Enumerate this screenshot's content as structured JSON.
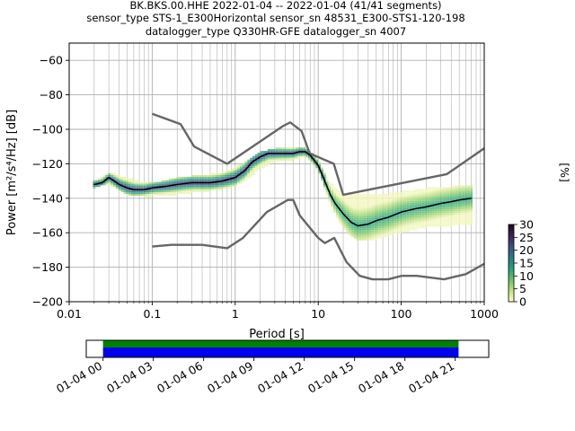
{
  "title_lines": [
    "BK.BKS.00.HHE   2022-01-04 -- 2022-01-04  (41/41 segments)",
    "sensor_type STS-1_E300Horizontal sensor_sn 48531_E300-STS1-120-198",
    "datalogger_type Q330HR-GFE datalogger_sn 4007"
  ],
  "chart_data": {
    "type": "heatmap",
    "xlabel": "Period [s]",
    "ylabel": "Power [m²/s⁴/Hz] [dB]",
    "x_scale": "log",
    "xlim": [
      0.01,
      1000
    ],
    "ylim": [
      -200,
      -50
    ],
    "grid": true,
    "x_ticks": [
      0.01,
      0.1,
      1,
      10,
      100,
      1000
    ],
    "x_tick_labels": [
      "0.01",
      "0.1",
      "1",
      "10",
      "100",
      "1000"
    ],
    "y_ticks": [
      -200,
      -180,
      -160,
      -140,
      -120,
      -100,
      -80,
      -60
    ],
    "y_tick_labels": [
      "−200",
      "−180",
      "−160",
      "−140",
      "−120",
      "−100",
      "−80",
      "−60"
    ],
    "colorbar": {
      "label": "[%]",
      "range": [
        0,
        30
      ],
      "ticks": [
        0,
        5,
        10,
        15,
        20,
        25,
        30
      ],
      "tick_labels": [
        "0",
        "5",
        "10",
        "15",
        "20",
        "25",
        "30"
      ]
    },
    "noise_models": {
      "high": {
        "period": [
          0.1,
          0.22,
          0.32,
          0.8,
          3.8,
          4.6,
          6.3,
          7.9,
          15.4,
          20,
          354.8,
          1000
        ],
        "db": [
          -91,
          -97,
          -110,
          -120,
          -98,
          -96,
          -101,
          -114,
          -120,
          -138,
          -126,
          -111
        ]
      },
      "low": {
        "period": [
          0.1,
          0.17,
          0.4,
          0.8,
          1.24,
          2.4,
          4.3,
          5,
          6,
          10,
          12,
          15.6,
          21.9,
          31.6,
          45,
          70,
          101,
          154,
          328,
          600,
          1000
        ],
        "db": [
          -168,
          -167,
          -167,
          -169,
          -163,
          -148,
          -141,
          -141,
          -150,
          -163,
          -166,
          -163,
          -177,
          -185,
          -187,
          -187,
          -185,
          -185,
          -187,
          -184,
          -178
        ]
      }
    },
    "mode_curve": {
      "period": [
        0.02,
        0.025,
        0.03,
        0.035,
        0.04,
        0.05,
        0.06,
        0.08,
        0.1,
        0.15,
        0.2,
        0.3,
        0.5,
        0.7,
        1.0,
        1.3,
        1.6,
        2.0,
        2.5,
        3.0,
        4.0,
        5.0,
        6.0,
        7.0,
        8.0,
        10.0,
        12.0,
        14.0,
        16.0,
        20.0,
        25.0,
        30.0,
        40.0,
        50.0,
        70.0,
        100.0,
        150.0,
        200.0,
        300.0,
        400.0,
        500.0,
        700.0
      ],
      "db": [
        -132,
        -131,
        -128,
        -130,
        -132,
        -134,
        -135,
        -135,
        -134,
        -133,
        -132,
        -131,
        -131,
        -130,
        -128,
        -124,
        -119,
        -116,
        -114,
        -114,
        -114,
        -114,
        -113,
        -113,
        -115,
        -121,
        -130,
        -138,
        -143,
        -149,
        -154,
        -156,
        -155,
        -153,
        -151,
        -148,
        -146,
        -145,
        -143,
        -142,
        -141,
        -140
      ]
    },
    "psd_band": {
      "period": [
        0.02,
        0.03,
        0.05,
        0.08,
        0.1,
        0.2,
        0.3,
        0.5,
        0.7,
        1.0,
        1.5,
        2.0,
        3.0,
        5.0,
        7.0,
        10.0,
        14.0,
        20.0,
        30.0,
        50.0,
        100.0,
        200.0,
        400.0,
        700.0
      ],
      "db_low": [
        -134,
        -132,
        -138,
        -139,
        -139,
        -138,
        -137,
        -136,
        -135,
        -133,
        -128,
        -123,
        -119,
        -118,
        -116,
        -124,
        -144,
        -158,
        -165,
        -164,
        -160,
        -157,
        -156,
        -155
      ],
      "db_high": [
        -130,
        -125,
        -128,
        -131,
        -131,
        -128,
        -127,
        -126,
        -125,
        -122,
        -117,
        -113,
        -111,
        -111,
        -110,
        -117,
        -131,
        -137,
        -138,
        -138,
        -136,
        -134,
        -133,
        -133
      ]
    },
    "time_axis": {
      "tick_labels": [
        "01-04 00",
        "01-04 03",
        "01-04 06",
        "01-04 09",
        "01-04 12",
        "01-04 15",
        "01-04 18",
        "01-04 21"
      ],
      "range_hours": [
        -1,
        23
      ],
      "coverage_hours": [
        0,
        21.2
      ]
    }
  },
  "colors": {
    "noise_model": "#666666",
    "mode": "#000000",
    "grid": "#b0b0b0",
    "coverage_data": "#0000ee",
    "coverage_segments": "#008000",
    "cmap": [
      "#fffdcd",
      "#c0e180",
      "#66c26a",
      "#27a07e",
      "#2a7b86",
      "#3e4f84",
      "#3b2352",
      "#1e0a20"
    ]
  }
}
